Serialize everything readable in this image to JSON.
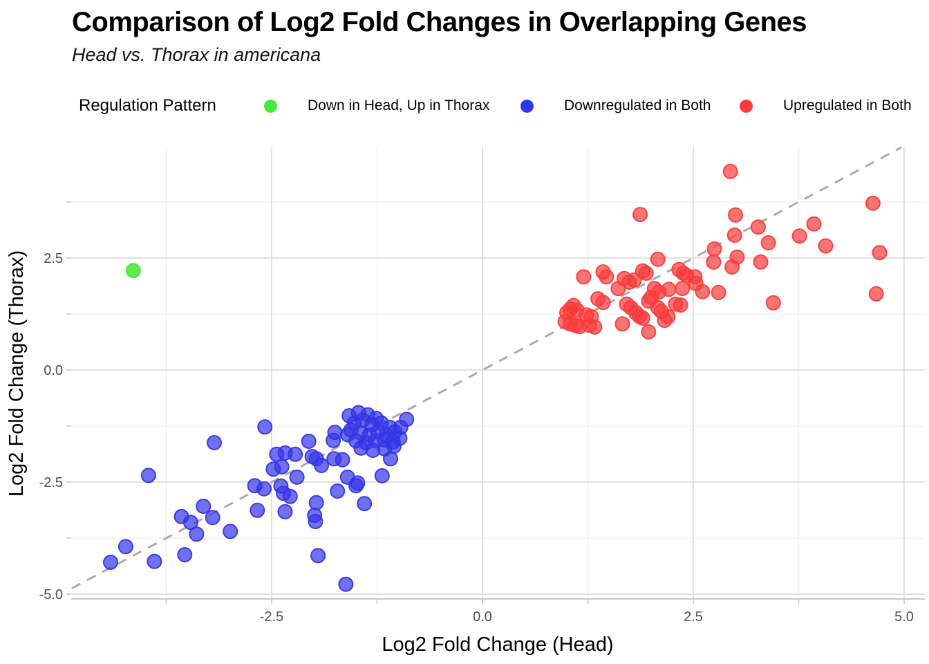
{
  "header": {
    "title": "Comparison of Log2 Fold Changes in Overlapping Genes",
    "subtitle": "Head vs. Thorax in americana"
  },
  "chart_data": {
    "type": "scatter",
    "title": "Comparison of Log2 Fold Changes in Overlapping Genes",
    "subtitle": "Head vs. Thorax in americana",
    "xlabel": "Log2 Fold Change (Head)",
    "ylabel": "Log2 Fold Change (Thorax)",
    "xlim": [
      -4.9,
      5.25
    ],
    "ylim": [
      -5.1,
      5.0
    ],
    "x_major_ticks": [
      -2.5,
      0,
      2.5,
      5
    ],
    "x_tick_labels": [
      "-2.5",
      "0.0",
      "2.5",
      "5.0"
    ],
    "x_minor_ticks": [
      -3.75,
      -1.25,
      1.25,
      3.75
    ],
    "y_major_ticks": [
      -5,
      -2.5,
      0,
      2.5
    ],
    "y_tick_labels": [
      "-5.0",
      "-2.5",
      "0.0",
      "2.5"
    ],
    "y_minor_ticks": [
      -3.75,
      -1.25,
      1.25,
      3.75
    ],
    "grid": true,
    "legend_title": "Regulation Pattern",
    "legend_position": "top",
    "reference_line": {
      "type": "identity y=x",
      "style": "dashed",
      "color": "#ababab"
    },
    "colors": {
      "major_grid": "#e0e0e0",
      "minor_grid": "#ededed",
      "axis_line": "#c9c9c9",
      "tick_text": "#4d4d4d"
    },
    "series": [
      {
        "name": "Down in Head, Up in Thorax",
        "color": "#47e838",
        "points": [
          [
            -4.14,
            2.22
          ]
        ]
      },
      {
        "name": "Downregulated in Both",
        "color": "#3434e8",
        "points": [
          [
            -4.41,
            -4.29
          ],
          [
            -4.23,
            -3.94
          ],
          [
            -3.89,
            -4.27
          ],
          [
            -3.53,
            -4.12
          ],
          [
            -3.96,
            -2.35
          ],
          [
            -3.57,
            -3.27
          ],
          [
            -3.46,
            -3.4
          ],
          [
            -3.39,
            -3.66
          ],
          [
            -3.31,
            -3.04
          ],
          [
            -3.2,
            -3.29
          ],
          [
            -2.99,
            -3.6
          ],
          [
            -2.67,
            -3.13
          ],
          [
            -3.18,
            -1.62
          ],
          [
            -2.58,
            -1.27
          ],
          [
            -2.7,
            -2.58
          ],
          [
            -2.59,
            -2.65
          ],
          [
            -2.48,
            -2.21
          ],
          [
            -2.44,
            -1.88
          ],
          [
            -2.34,
            -1.85
          ],
          [
            -2.38,
            -2.16
          ],
          [
            -2.22,
            -1.88
          ],
          [
            -2.2,
            -2.39
          ],
          [
            -2.39,
            -2.59
          ],
          [
            -2.36,
            -2.75
          ],
          [
            -2.28,
            -2.82
          ],
          [
            -2.34,
            -3.16
          ],
          [
            -2.06,
            -1.59
          ],
          [
            -2.02,
            -1.93
          ],
          [
            -1.97,
            -1.98
          ],
          [
            -1.99,
            -3.24
          ],
          [
            -1.98,
            -3.38
          ],
          [
            -1.97,
            -2.96
          ],
          [
            -1.95,
            -4.14
          ],
          [
            -1.91,
            -2.13
          ],
          [
            -1.76,
            -1.98
          ],
          [
            -1.66,
            -2.0
          ],
          [
            -1.75,
            -1.39
          ],
          [
            -1.77,
            -1.57
          ],
          [
            -1.72,
            -2.7
          ],
          [
            -1.62,
            -4.78
          ],
          [
            -1.6,
            -1.44
          ],
          [
            -1.6,
            -2.39
          ],
          [
            -1.48,
            -2.52
          ],
          [
            -1.5,
            -2.58
          ],
          [
            -1.4,
            -2.98
          ],
          [
            -1.19,
            -2.36
          ],
          [
            -1.09,
            -1.98
          ],
          [
            -0.9,
            -1.1
          ],
          [
            -1.58,
            -1.02
          ],
          [
            -1.47,
            -0.95
          ],
          [
            -1.36,
            -1.0
          ],
          [
            -1.26,
            -1.08
          ],
          [
            -1.52,
            -1.18
          ],
          [
            -1.42,
            -1.12
          ],
          [
            -1.31,
            -1.22
          ],
          [
            -1.2,
            -1.18
          ],
          [
            -1.1,
            -1.28
          ],
          [
            -1.56,
            -1.34
          ],
          [
            -1.45,
            -1.4
          ],
          [
            -1.34,
            -1.45
          ],
          [
            -1.24,
            -1.38
          ],
          [
            -1.14,
            -1.44
          ],
          [
            -1.04,
            -1.38
          ],
          [
            -0.97,
            -1.28
          ],
          [
            -1.5,
            -1.58
          ],
          [
            -1.38,
            -1.62
          ],
          [
            -1.27,
            -1.58
          ],
          [
            -1.16,
            -1.56
          ],
          [
            -1.06,
            -1.6
          ],
          [
            -0.98,
            -1.52
          ],
          [
            -1.44,
            -1.74
          ],
          [
            -1.3,
            -1.79
          ],
          [
            -1.16,
            -1.76
          ],
          [
            -1.05,
            -1.7
          ]
        ]
      },
      {
        "name": "Upregulated in Both",
        "color": "#f93b3b",
        "points": [
          [
            1.2,
            2.08
          ],
          [
            1.43,
            2.19
          ],
          [
            1.47,
            2.08
          ],
          [
            1.68,
            2.04
          ],
          [
            1.74,
            1.96
          ],
          [
            1.8,
            2.01
          ],
          [
            1.9,
            2.21
          ],
          [
            1.94,
            2.16
          ],
          [
            2.08,
            2.47
          ],
          [
            2.33,
            2.24
          ],
          [
            2.38,
            2.16
          ],
          [
            2.42,
            2.11
          ],
          [
            1.61,
            1.82
          ],
          [
            2.04,
            1.82
          ],
          [
            2.09,
            1.74
          ],
          [
            2.21,
            1.8
          ],
          [
            1.37,
            1.59
          ],
          [
            1.43,
            1.51
          ],
          [
            1.08,
            1.44
          ],
          [
            1.04,
            1.36
          ],
          [
            1.12,
            1.34
          ],
          [
            1.0,
            1.28
          ],
          [
            1.23,
            1.23
          ],
          [
            1.29,
            1.19
          ],
          [
            0.98,
            1.08
          ],
          [
            1.04,
            1.03
          ],
          [
            1.1,
            1.0
          ],
          [
            1.15,
            0.97
          ],
          [
            1.27,
            1.0
          ],
          [
            1.33,
            0.96
          ],
          [
            1.71,
            1.47
          ],
          [
            1.76,
            1.39
          ],
          [
            1.82,
            1.28
          ],
          [
            1.86,
            1.2
          ],
          [
            1.9,
            1.16
          ],
          [
            1.97,
            1.54
          ],
          [
            2.0,
            1.62
          ],
          [
            2.08,
            1.39
          ],
          [
            2.12,
            1.31
          ],
          [
            1.66,
            1.03
          ],
          [
            2.16,
            1.11
          ],
          [
            2.2,
            1.19
          ],
          [
            2.37,
            1.82
          ],
          [
            2.29,
            1.47
          ],
          [
            1.97,
            0.85
          ],
          [
            1.87,
            3.47
          ],
          [
            2.94,
            4.43
          ],
          [
            3.0,
            3.46
          ],
          [
            2.99,
            3.01
          ],
          [
            3.27,
            3.19
          ],
          [
            3.39,
            2.84
          ],
          [
            2.75,
            2.7
          ],
          [
            2.74,
            2.41
          ],
          [
            3.02,
            2.52
          ],
          [
            2.96,
            2.3
          ],
          [
            3.3,
            2.41
          ],
          [
            3.76,
            2.99
          ],
          [
            3.93,
            3.26
          ],
          [
            4.07,
            2.77
          ],
          [
            4.63,
            3.72
          ],
          [
            4.71,
            2.62
          ],
          [
            4.67,
            1.7
          ],
          [
            3.45,
            1.5
          ],
          [
            2.8,
            1.73
          ],
          [
            2.52,
            2.08
          ],
          [
            2.53,
            1.93
          ],
          [
            2.61,
            1.75
          ],
          [
            2.35,
            1.45
          ]
        ]
      }
    ]
  }
}
